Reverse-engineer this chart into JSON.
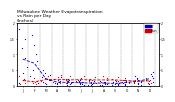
{
  "title": "Milwaukee Weather Evapotranspiration\nvs Rain per Day\n(Inches)",
  "title_fontsize": 3.2,
  "background_color": "#ffffff",
  "grid_color": "#888888",
  "et_color": "#0000cc",
  "rain_color": "#cc0000",
  "avg_et_color": "#0000cc",
  "avg_rain_color": "#cc0000",
  "legend_et_label": "ET",
  "legend_rain_label": "Rain",
  "ylim": [
    0.0,
    2.0
  ],
  "xlim": [
    0.5,
    12.8
  ],
  "et_monthly_x": [
    1,
    2,
    3,
    4,
    5,
    6,
    7,
    8,
    9,
    10,
    11,
    12
  ],
  "et_monthly_vals": [
    [
      1.8,
      1.5,
      1.2,
      0.9,
      0.6,
      0.4,
      0.2,
      0.1
    ],
    [
      1.6,
      1.3,
      1.0,
      0.8,
      0.5,
      0.3,
      0.15,
      0.08
    ],
    [
      0.5,
      0.4,
      0.35,
      0.28,
      0.22,
      0.18,
      0.12,
      0.07
    ],
    [
      0.28,
      0.22,
      0.18,
      0.15,
      0.12,
      0.1,
      0.08,
      0.05
    ],
    [
      0.22,
      0.18,
      0.15,
      0.12,
      0.1,
      0.08,
      0.06,
      0.04
    ],
    [
      0.2,
      0.17,
      0.14,
      0.11,
      0.09,
      0.07,
      0.05,
      0.03
    ],
    [
      0.18,
      0.15,
      0.12,
      0.1,
      0.08,
      0.06,
      0.04,
      0.03
    ],
    [
      0.16,
      0.14,
      0.11,
      0.09,
      0.07,
      0.05,
      0.04,
      0.02
    ],
    [
      0.15,
      0.12,
      0.1,
      0.08,
      0.06,
      0.05,
      0.03,
      0.02
    ],
    [
      0.2,
      0.17,
      0.14,
      0.11,
      0.09,
      0.07,
      0.05,
      0.03
    ],
    [
      0.3,
      0.25,
      0.2,
      0.16,
      0.12,
      0.09,
      0.06,
      0.04
    ],
    [
      0.45,
      0.38,
      0.3,
      0.24,
      0.18,
      0.13,
      0.09,
      0.05
    ]
  ],
  "rain_monthly_vals": [
    [
      0.18,
      0.1,
      0.05,
      0.22,
      0.3
    ],
    [
      0.08,
      0.15,
      0.25,
      0.12,
      0.05
    ],
    [
      0.2,
      0.3,
      0.15,
      0.08,
      0.25
    ],
    [
      0.12,
      0.28,
      0.18,
      0.1,
      0.35
    ],
    [
      0.22,
      0.15,
      0.3,
      0.1,
      0.2
    ],
    [
      0.25,
      0.18,
      0.12,
      0.3,
      0.15
    ],
    [
      0.2,
      0.28,
      0.1,
      0.22,
      0.15
    ],
    [
      0.18,
      0.25,
      0.12,
      0.3,
      0.08
    ],
    [
      0.15,
      0.22,
      0.1,
      0.28,
      0.18
    ],
    [
      0.2,
      0.12,
      0.25,
      0.08,
      0.18
    ],
    [
      0.15,
      0.22,
      0.1,
      0.18,
      0.12
    ],
    [
      0.2,
      0.08,
      0.15,
      0.25,
      0.1
    ]
  ],
  "avg_et_y": [
    0.85,
    0.72,
    0.23,
    0.12,
    0.11,
    0.1,
    0.09,
    0.09,
    0.08,
    0.11,
    0.15,
    0.23
  ],
  "avg_rain_y": [
    0.17,
    0.13,
    0.2,
    0.21,
    0.19,
    0.2,
    0.19,
    0.19,
    0.19,
    0.17,
    0.15,
    0.16
  ],
  "xtick_positions": [
    1,
    2,
    3,
    4,
    5,
    6,
    7,
    8,
    9,
    10,
    11,
    12
  ],
  "xtick_labels": [
    "J",
    "F",
    "M",
    "A",
    "M",
    "J",
    "J",
    "A",
    "S",
    "O",
    "N",
    "D"
  ],
  "ytick_positions": [
    0.0,
    0.5,
    1.0,
    1.5,
    2.0
  ],
  "ytick_labels": [
    "0",
    ".5",
    "1",
    "1.5",
    "2"
  ],
  "right_ytick_positions": [
    0.0,
    0.5,
    1.0,
    1.5,
    2.0
  ],
  "right_ytick_labels": [
    "0",
    ".5",
    "1",
    "1.5",
    "2"
  ]
}
